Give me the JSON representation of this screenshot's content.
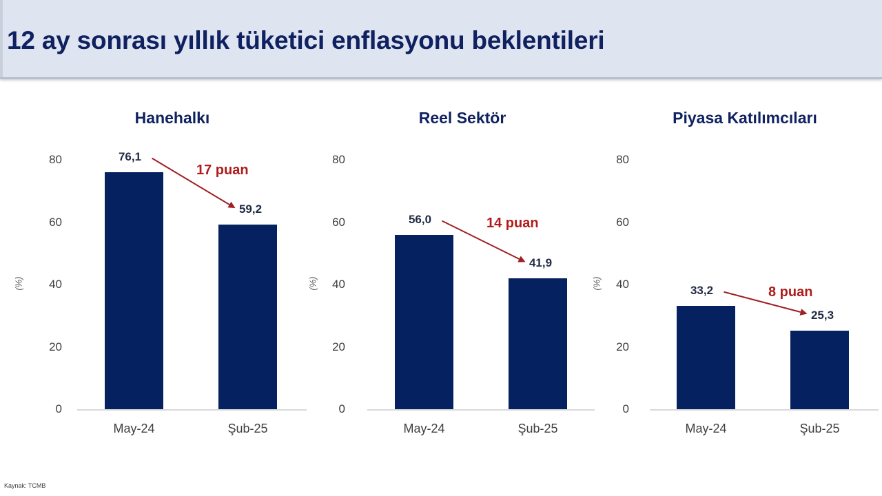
{
  "header": {
    "title": "12 ay sonrası yıllık tüketici enflasyonu beklentileri"
  },
  "footer": {
    "source": "Kaynak: TCMB"
  },
  "colors": {
    "bar": "#06215f",
    "title": "#0f2160",
    "delta": "#b01c1c",
    "header_bg": "#dfe5f0"
  },
  "charts": [
    {
      "title": "Hanehalkı",
      "yunit": "(%)",
      "yticks": [
        "0",
        "20",
        "40",
        "60",
        "80"
      ],
      "categories": [
        "May-24",
        "Şub-25"
      ],
      "value_labels": [
        "76,1",
        "59,2"
      ],
      "delta_label": "17 puan"
    },
    {
      "title": "Reel Sektör",
      "yunit": "(%)",
      "yticks": [
        "0",
        "20",
        "40",
        "60",
        "80"
      ],
      "categories": [
        "May-24",
        "Şub-25"
      ],
      "value_labels": [
        "56,0",
        "41,9"
      ],
      "delta_label": "14 puan"
    },
    {
      "title": "Piyasa Katılımcıları",
      "yunit": "(%)",
      "yticks": [
        "0",
        "20",
        "40",
        "60",
        "80"
      ],
      "categories": [
        "May-24",
        "Şub-25"
      ],
      "value_labels": [
        "33,2",
        "25,3"
      ],
      "delta_label": "8 puan"
    }
  ],
  "chart_data": [
    {
      "type": "bar",
      "title": "Hanehalkı",
      "categories": [
        "May-24",
        "Şub-25"
      ],
      "values": [
        76.1,
        59.2
      ],
      "annotation": "17 puan",
      "xlabel": "",
      "ylabel": "(%)",
      "ylim": [
        0,
        80
      ],
      "yticks": [
        0,
        20,
        40,
        60,
        80
      ],
      "grid": false,
      "legend": "none"
    },
    {
      "type": "bar",
      "title": "Reel Sektör",
      "categories": [
        "May-24",
        "Şub-25"
      ],
      "values": [
        56.0,
        41.9
      ],
      "annotation": "14 puan",
      "xlabel": "",
      "ylabel": "(%)",
      "ylim": [
        0,
        80
      ],
      "yticks": [
        0,
        20,
        40,
        60,
        80
      ],
      "grid": false,
      "legend": "none"
    },
    {
      "type": "bar",
      "title": "Piyasa Katılımcıları",
      "categories": [
        "May-24",
        "Şub-25"
      ],
      "values": [
        33.2,
        25.3
      ],
      "annotation": "8 puan",
      "xlabel": "",
      "ylabel": "(%)",
      "ylim": [
        0,
        80
      ],
      "yticks": [
        0,
        20,
        40,
        60,
        80
      ],
      "grid": false,
      "legend": "none"
    }
  ]
}
